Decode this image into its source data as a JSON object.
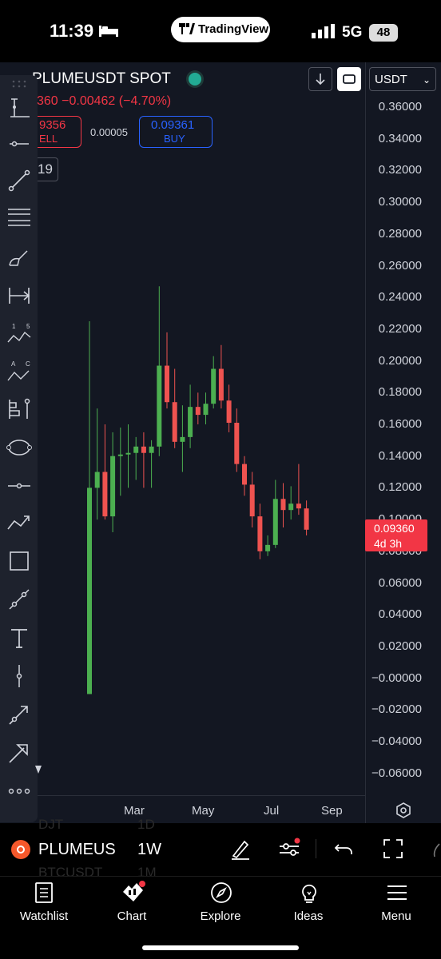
{
  "status_bar": {
    "time": "11:39",
    "app_pill": "TradingView",
    "network": "5G",
    "battery": "48"
  },
  "header": {
    "symbol_title": "PLUMEUSDT SPOT",
    "change_text": "360  −0.00462 (−4.70%)",
    "sell_price": "9356",
    "sell_label": "ELL",
    "spread": "0.00005",
    "buy_price": "0.09361",
    "buy_label": "BUY",
    "interval_box": "19",
    "currency_select": "USDT"
  },
  "price_axis": {
    "ticks": [
      "0.36000",
      "0.34000",
      "0.32000",
      "0.30000",
      "0.28000",
      "0.26000",
      "0.24000",
      "0.22000",
      "0.20000",
      "0.18000",
      "0.16000",
      "0.14000",
      "0.12000",
      "0.10000",
      "0.08000",
      "0.06000",
      "0.04000",
      "0.02000",
      "−0.00000",
      "−0.02000",
      "−0.04000",
      "−0.06000"
    ],
    "current_price": "0.09360",
    "countdown": "4d 3h"
  },
  "time_axis": {
    "ticks": [
      "Mar",
      "May",
      "Jul",
      "Sep"
    ]
  },
  "colors": {
    "up": "#4caf50",
    "down": "#ef5350",
    "background": "#131722",
    "accent_red": "#f23645",
    "accent_blue": "#2962ff"
  },
  "chart_data": {
    "type": "candlestick",
    "series": [
      {
        "candles": [
          {
            "open": -0.01,
            "high": 0.225,
            "low": -0.01,
            "close": 0.12
          },
          {
            "open": 0.12,
            "high": 0.17,
            "low": 0.1,
            "close": 0.13
          },
          {
            "open": 0.13,
            "high": 0.16,
            "low": 0.1,
            "close": 0.102
          },
          {
            "open": 0.102,
            "high": 0.155,
            "low": 0.092,
            "close": 0.14
          },
          {
            "open": 0.14,
            "high": 0.158,
            "low": 0.115,
            "close": 0.141
          },
          {
            "open": 0.141,
            "high": 0.16,
            "low": 0.12,
            "close": 0.142
          },
          {
            "open": 0.142,
            "high": 0.152,
            "low": 0.125,
            "close": 0.146
          },
          {
            "open": 0.146,
            "high": 0.155,
            "low": 0.12,
            "close": 0.142
          },
          {
            "open": 0.142,
            "high": 0.15,
            "low": 0.12,
            "close": 0.146
          },
          {
            "open": 0.146,
            "high": 0.247,
            "low": 0.14,
            "close": 0.197
          },
          {
            "open": 0.197,
            "high": 0.218,
            "low": 0.17,
            "close": 0.174
          },
          {
            "open": 0.174,
            "high": 0.195,
            "low": 0.145,
            "close": 0.149
          },
          {
            "open": 0.149,
            "high": 0.172,
            "low": 0.13,
            "close": 0.152
          },
          {
            "open": 0.152,
            "high": 0.185,
            "low": 0.145,
            "close": 0.171
          },
          {
            "open": 0.171,
            "high": 0.18,
            "low": 0.16,
            "close": 0.166
          },
          {
            "open": 0.166,
            "high": 0.18,
            "low": 0.16,
            "close": 0.173
          },
          {
            "open": 0.173,
            "high": 0.203,
            "low": 0.17,
            "close": 0.195
          },
          {
            "open": 0.195,
            "high": 0.21,
            "low": 0.17,
            "close": 0.175
          },
          {
            "open": 0.175,
            "high": 0.185,
            "low": 0.155,
            "close": 0.161
          },
          {
            "open": 0.161,
            "high": 0.17,
            "low": 0.13,
            "close": 0.135
          },
          {
            "open": 0.135,
            "high": 0.14,
            "low": 0.115,
            "close": 0.122
          },
          {
            "open": 0.122,
            "high": 0.13,
            "low": 0.095,
            "close": 0.102
          },
          {
            "open": 0.102,
            "high": 0.11,
            "low": 0.075,
            "close": 0.08
          },
          {
            "open": 0.08,
            "high": 0.09,
            "low": 0.077,
            "close": 0.084
          },
          {
            "open": 0.084,
            "high": 0.125,
            "low": 0.082,
            "close": 0.113
          },
          {
            "open": 0.113,
            "high": 0.123,
            "low": 0.095,
            "close": 0.106
          },
          {
            "open": 0.106,
            "high": 0.121,
            "low": 0.1,
            "close": 0.11
          },
          {
            "open": 0.11,
            "high": 0.135,
            "low": 0.103,
            "close": 0.107
          },
          {
            "open": 0.107,
            "high": 0.112,
            "low": 0.09,
            "close": 0.0936
          }
        ]
      }
    ],
    "ylim": [
      -0.07,
      0.365
    ],
    "xlabels": [
      "Mar",
      "May",
      "Jul",
      "Sep"
    ]
  },
  "toolbar": {
    "items": [
      "crosshair",
      "horizontal-ray",
      "trend-line",
      "parallel-channel",
      "brush",
      "measure",
      "elliott-wave-numbers",
      "abc-pattern",
      "long-position",
      "ellipse",
      "horizontal-line",
      "zigzag",
      "rectangle",
      "path",
      "text",
      "vertical-line",
      "arrow",
      "arrow-marker",
      "more"
    ]
  },
  "symbol_bar": {
    "symbol": "PLUMEUS",
    "interval": "1W",
    "ghost_row1_symbol": "DJT",
    "ghost_row1_interval": "1D",
    "ghost_row2_symbol": "BTCUSDT",
    "ghost_row2_interval": "1M"
  },
  "tabs": [
    {
      "label": "Watchlist",
      "icon": "watchlist-icon"
    },
    {
      "label": "Chart",
      "icon": "chart-icon"
    },
    {
      "label": "Explore",
      "icon": "compass-icon"
    },
    {
      "label": "Ideas",
      "icon": "lightbulb-icon"
    },
    {
      "label": "Menu",
      "icon": "hamburger-icon"
    }
  ]
}
